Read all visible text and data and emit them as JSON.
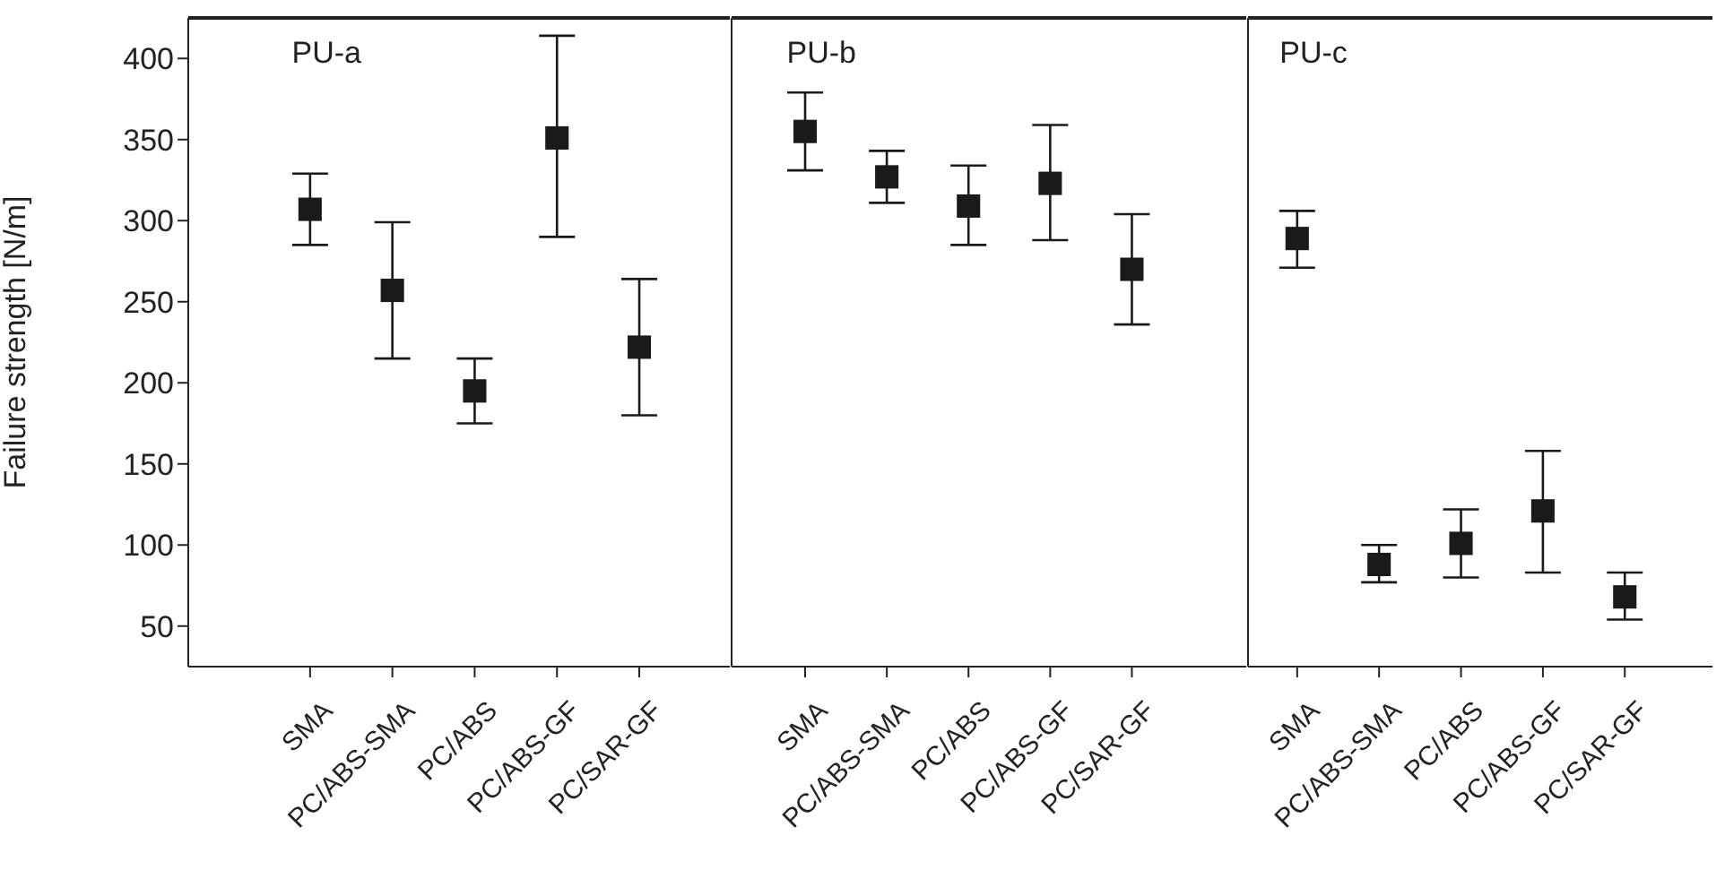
{
  "chart_data": [
    {
      "type": "scatter",
      "title": "PU-a",
      "ylabel": "Failure strength [N/m]",
      "categories": [
        "SMA",
        "PC/ABS-SMA",
        "PC/ABS",
        "PC/ABS-GF",
        "PC/SAR-GF"
      ],
      "values": [
        307,
        257,
        195,
        351,
        222
      ],
      "errors": [
        [
          285,
          329
        ],
        [
          215,
          299
        ],
        [
          175,
          215
        ],
        [
          290,
          414
        ],
        [
          180,
          264
        ]
      ],
      "color": "#1a1a1a",
      "marker": "square",
      "ylim": [
        25,
        425
      ],
      "yticks": [
        50,
        100,
        150,
        200,
        250,
        300,
        350,
        400
      ]
    },
    {
      "type": "scatter",
      "title": "PU-b",
      "categories": [
        "SMA",
        "PC/ABS-SMA",
        "PC/ABS",
        "PC/ABS-GF",
        "PC/SAR-GF"
      ],
      "values": [
        355,
        327,
        309,
        323,
        270
      ],
      "errors": [
        [
          331,
          379
        ],
        [
          311,
          343
        ],
        [
          285,
          334
        ],
        [
          288,
          359
        ],
        [
          236,
          304
        ]
      ],
      "color": "#1a1a1a",
      "marker": "square",
      "ylim": [
        25,
        425
      ],
      "tick_labels": "x"
    },
    {
      "type": "scatter",
      "title": "PU-c",
      "categories": [
        "SMA",
        "PC/ABS-SMA",
        "PC/ABS",
        "PC/ABS-GF",
        "PC/SAR-GF"
      ],
      "values": [
        289,
        88,
        101,
        121,
        68
      ],
      "errors": [
        [
          271,
          306
        ],
        [
          77,
          100
        ],
        [
          80,
          122
        ],
        [
          83,
          158
        ],
        [
          54,
          83
        ]
      ],
      "color": "#1a1a1a",
      "marker": "square",
      "ylim": [
        25,
        425
      ],
      "tick_labels": "x"
    }
  ]
}
